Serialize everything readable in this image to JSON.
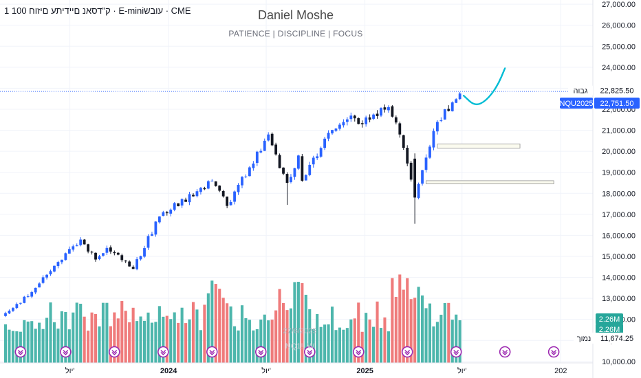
{
  "header": {
    "symbol_title": "ק\"דסאנ םיידיתע םיזוח 100 1 · E-miniעובש · CME",
    "watermark_name": "Daniel Moshe",
    "watermark_tagline": "PATIENCE   |   DISCIPLINE   |   FOCUS",
    "faint_date": "27/6/2025",
    "faint_symbol": "NQ1!, W"
  },
  "price_labels": {
    "high_label": "גבוה",
    "high_value": "22,825.50",
    "symbol_tag": "NQU2025",
    "last_value": "22,751.50",
    "volume_1": "2.26M",
    "volume_2": "2.26M",
    "low_label": "נמוך",
    "low_value": "11,674.25"
  },
  "colors": {
    "up": "#2962ff",
    "down": "#131722",
    "vol_up": "#4db6ac",
    "vol_down": "#ef7b7b",
    "drawing": "#00bcd4",
    "event_icon": "#9c27b0"
  },
  "chart_data": {
    "type": "candlestick",
    "interval": "weekly",
    "y_axis": {
      "ticks": [
        "27,000.00",
        "26,000.00",
        "25,000.00",
        "24,000.00",
        "23,000.00",
        "22,000.00",
        "21,000.00",
        "20,000.00",
        "19,000.00",
        "18,000.00",
        "17,000.00",
        "16,000.00",
        "15,000.00",
        "14,000.00",
        "13,000.00",
        "12,000.00",
        "11,000.00",
        "10,000.00"
      ],
      "range": [
        9800,
        27200
      ]
    },
    "x_axis": {
      "labels": [
        {
          "text": "יול'",
          "date": "2023-07-01",
          "bold": false
        },
        {
          "text": "2024",
          "date": "2024-01-01",
          "bold": true
        },
        {
          "text": "יול'",
          "date": "2024-07-01",
          "bold": false
        },
        {
          "text": "2025",
          "date": "2025-01-01",
          "bold": true
        },
        {
          "text": "יול'",
          "date": "2025-07-01",
          "bold": false
        },
        {
          "text": "202",
          "date": "2026-01-01",
          "bold": false
        }
      ]
    },
    "anchors": [
      {
        "date": "2023-03-03",
        "close": 12300
      },
      {
        "date": "2023-04-14",
        "close": 13100
      },
      {
        "date": "2023-05-26",
        "close": 14300
      },
      {
        "date": "2023-06-30",
        "close": 15350
      },
      {
        "date": "2023-07-21",
        "close": 15800
      },
      {
        "date": "2023-08-18",
        "close": 14850
      },
      {
        "date": "2023-09-08",
        "close": 15400
      },
      {
        "date": "2023-10-27",
        "close": 14400
      },
      {
        "date": "2023-12-15",
        "close": 16900
      },
      {
        "date": "2024-02-23",
        "close": 18100
      },
      {
        "date": "2024-03-22",
        "close": 18600
      },
      {
        "date": "2024-04-19",
        "close": 17400
      },
      {
        "date": "2024-07-05",
        "close": 20800
      },
      {
        "date": "2024-07-26",
        "close": 19200
      },
      {
        "date": "2024-08-09",
        "close": 18500
      },
      {
        "date": "2024-08-30",
        "close": 19800
      },
      {
        "date": "2024-09-06",
        "close": 18600
      },
      {
        "date": "2024-10-18",
        "close": 20600
      },
      {
        "date": "2024-12-06",
        "close": 21700
      },
      {
        "date": "2024-12-20",
        "close": 21300
      },
      {
        "date": "2025-02-14",
        "close": 22100
      },
      {
        "date": "2025-03-07",
        "close": 20800
      },
      {
        "date": "2025-04-04",
        "close": 17800
      },
      {
        "date": "2025-04-25",
        "close": 19700
      },
      {
        "date": "2025-05-16",
        "close": 21400
      },
      {
        "date": "2025-06-27",
        "close": 22751.5
      }
    ],
    "last_close": 22751.5,
    "period_high": 22825.5,
    "period_low": 11674.25,
    "zones": [
      {
        "from": "2025-05-16",
        "to": "2025-10-17",
        "low": 20150,
        "high": 20350
      },
      {
        "from": "2025-04-25",
        "to": "2025-12-19",
        "low": 18450,
        "high": 18600
      }
    ],
    "projection": [
      {
        "date": "2025-07-04",
        "value": 22650
      },
      {
        "date": "2025-07-25",
        "value": 22150
      },
      {
        "date": "2025-08-15",
        "value": 22400
      },
      {
        "date": "2025-09-05",
        "value": 23100
      },
      {
        "date": "2025-09-19",
        "value": 23950
      }
    ],
    "volume_series": "weekly volume histogram, last value 2.26M",
    "event_marks": [
      "2023-03-31",
      "2023-06-23",
      "2023-09-22",
      "2023-12-22",
      "2024-03-22",
      "2024-06-21",
      "2024-09-20",
      "2024-12-20",
      "2025-03-21",
      "2025-06-20",
      "2025-09-19",
      "2025-12-19"
    ]
  }
}
